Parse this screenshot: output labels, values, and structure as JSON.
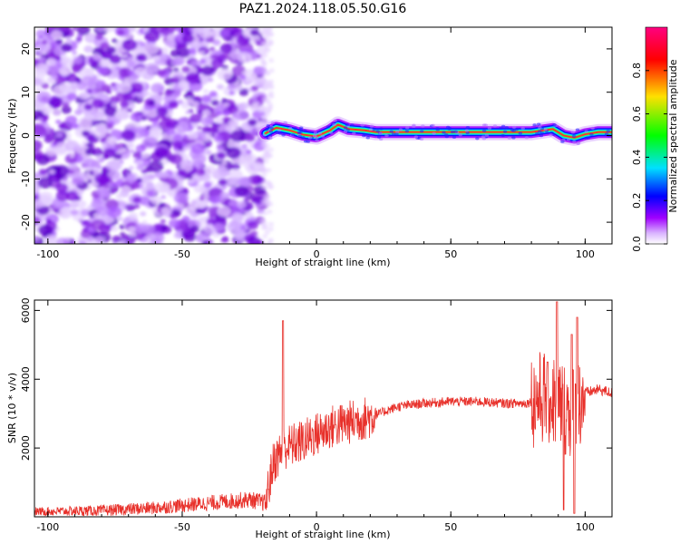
{
  "title": "PAZ1.2024.118.05.50.G16",
  "chart_data": [
    {
      "type": "heatmap",
      "xlabel": "Height of straight line (km)",
      "ylabel": "Frequency (Hz)",
      "xlim": [
        -105,
        110
      ],
      "ylim": [
        -25,
        25
      ],
      "xticks": [
        -100,
        -50,
        0,
        50,
        100
      ],
      "yticks": [
        -20,
        -10,
        0,
        10,
        20
      ],
      "colorbar": {
        "label": "Normalized spectral amplitude",
        "range": [
          0,
          1
        ],
        "ticks": [
          0.0,
          0.2,
          0.4,
          0.6,
          0.8
        ],
        "colors": [
          "#ffffff",
          "#a000ff",
          "#0000ff",
          "#00e0ff",
          "#00ff00",
          "#ffe000",
          "#ff0000",
          "#ff0080"
        ]
      },
      "features": {
        "noise_region_x": [
          -105,
          -20
        ],
        "signal_centerline": [
          {
            "x": -19,
            "y": 0.5
          },
          {
            "x": -15,
            "y": 1.8
          },
          {
            "x": -10,
            "y": 1.2
          },
          {
            "x": -5,
            "y": 0.2
          },
          {
            "x": 0,
            "y": -0.2
          },
          {
            "x": 5,
            "y": 1.2
          },
          {
            "x": 8,
            "y": 2.5
          },
          {
            "x": 12,
            "y": 1.5
          },
          {
            "x": 18,
            "y": 1.2
          },
          {
            "x": 22,
            "y": 0.8
          },
          {
            "x": 40,
            "y": 0.8
          },
          {
            "x": 60,
            "y": 0.8
          },
          {
            "x": 80,
            "y": 0.8
          },
          {
            "x": 88,
            "y": 1.5
          },
          {
            "x": 92,
            "y": 0.0
          },
          {
            "x": 96,
            "y": -0.5
          },
          {
            "x": 100,
            "y": 0.3
          },
          {
            "x": 105,
            "y": 0.8
          },
          {
            "x": 110,
            "y": 0.8
          }
        ]
      }
    },
    {
      "type": "line",
      "xlabel": "Height of straight line (km)",
      "ylabel": "SNR (10 * v/v)",
      "xlim": [
        -105,
        110
      ],
      "ylim": [
        0,
        6300
      ],
      "xticks": [
        -100,
        -50,
        0,
        50,
        100
      ],
      "yticks": [
        2000,
        4000,
        6000
      ],
      "series_color": "#e8312b",
      "trend": [
        {
          "x": -105,
          "y": 150
        },
        {
          "x": -80,
          "y": 180
        },
        {
          "x": -60,
          "y": 260
        },
        {
          "x": -40,
          "y": 400
        },
        {
          "x": -25,
          "y": 500
        },
        {
          "x": -19,
          "y": 400
        },
        {
          "x": -16,
          "y": 1600
        },
        {
          "x": -12,
          "y": 2000
        },
        {
          "x": -5,
          "y": 2200
        },
        {
          "x": 0,
          "y": 2400
        },
        {
          "x": 5,
          "y": 2600
        },
        {
          "x": 10,
          "y": 2700
        },
        {
          "x": 20,
          "y": 2900
        },
        {
          "x": 30,
          "y": 3200
        },
        {
          "x": 40,
          "y": 3300
        },
        {
          "x": 50,
          "y": 3350
        },
        {
          "x": 60,
          "y": 3350
        },
        {
          "x": 70,
          "y": 3300
        },
        {
          "x": 78,
          "y": 3300
        },
        {
          "x": 85,
          "y": 3500
        },
        {
          "x": 90,
          "y": 3300
        },
        {
          "x": 95,
          "y": 3000
        },
        {
          "x": 100,
          "y": 3600
        },
        {
          "x": 105,
          "y": 3700
        },
        {
          "x": 110,
          "y": 3600
        }
      ],
      "spikes": [
        {
          "x": -12.5,
          "y": 5700
        },
        {
          "x": 89.5,
          "y": 6250
        },
        {
          "x": 86,
          "y": 4500
        },
        {
          "x": 97,
          "y": 5800
        },
        {
          "x": 95,
          "y": 5300
        },
        {
          "x": 92,
          "y": 200
        },
        {
          "x": 96,
          "y": 100
        }
      ]
    }
  ]
}
